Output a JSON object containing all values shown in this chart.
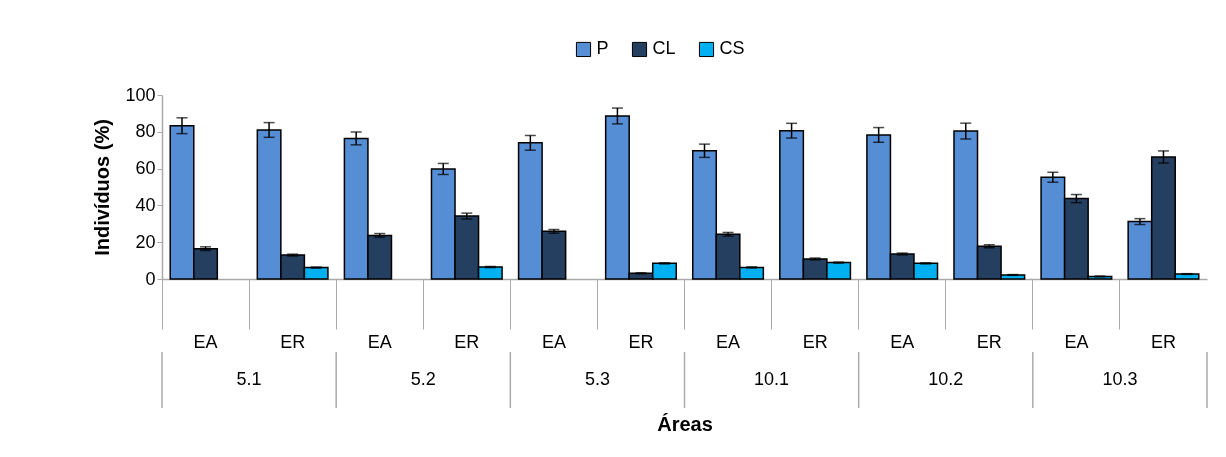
{
  "chart_data": {
    "type": "bar",
    "ylabel": "Indivíduos (%)",
    "xlabel": "Áreas",
    "categories": [
      "EA",
      "ER",
      "EA",
      "ER",
      "EA",
      "ER",
      "EA",
      "ER",
      "EA",
      "ER",
      "EA",
      "ER"
    ],
    "annotations": [
      "5.1",
      "5.2",
      "5.3",
      "10.1",
      "10.2",
      "10.3"
    ],
    "series": [
      {
        "name": "P",
        "color": "#558ed5",
        "values": [
          83.3,
          81,
          76.4,
          59.8,
          74,
          88.6,
          69.7,
          80.6,
          78.3,
          80.4,
          55.3,
          31.2
        ],
        "errors": [
          4.3,
          4,
          3.5,
          3,
          4,
          4.3,
          3.6,
          4,
          4,
          4.3,
          2.7,
          1.6
        ]
      },
      {
        "name": "CL",
        "color": "#243f60",
        "values": [
          16.5,
          13,
          23.7,
          34.2,
          25.9,
          3.1,
          24.3,
          10.9,
          13.6,
          17.8,
          43.7,
          66.3
        ],
        "errors": [
          1,
          0.5,
          1,
          1.6,
          1,
          0.3,
          1,
          0.5,
          0.5,
          0.8,
          2.2,
          3.3
        ]
      },
      {
        "name": "CS",
        "color": "#00b0f0",
        "values": [
          null,
          6.2,
          null,
          6.5,
          null,
          8.5,
          6.3,
          8.9,
          8.5,
          2.2,
          1.4,
          2.7
        ],
        "errors": [
          null,
          0.3,
          null,
          0.3,
          null,
          0.3,
          0.3,
          0.3,
          0.3,
          0.2,
          0.2,
          0.2
        ]
      }
    ],
    "ylim": [
      0,
      100
    ],
    "yticks": [
      0,
      20,
      40,
      60,
      80,
      100
    ],
    "grid": false,
    "legend": "top"
  }
}
